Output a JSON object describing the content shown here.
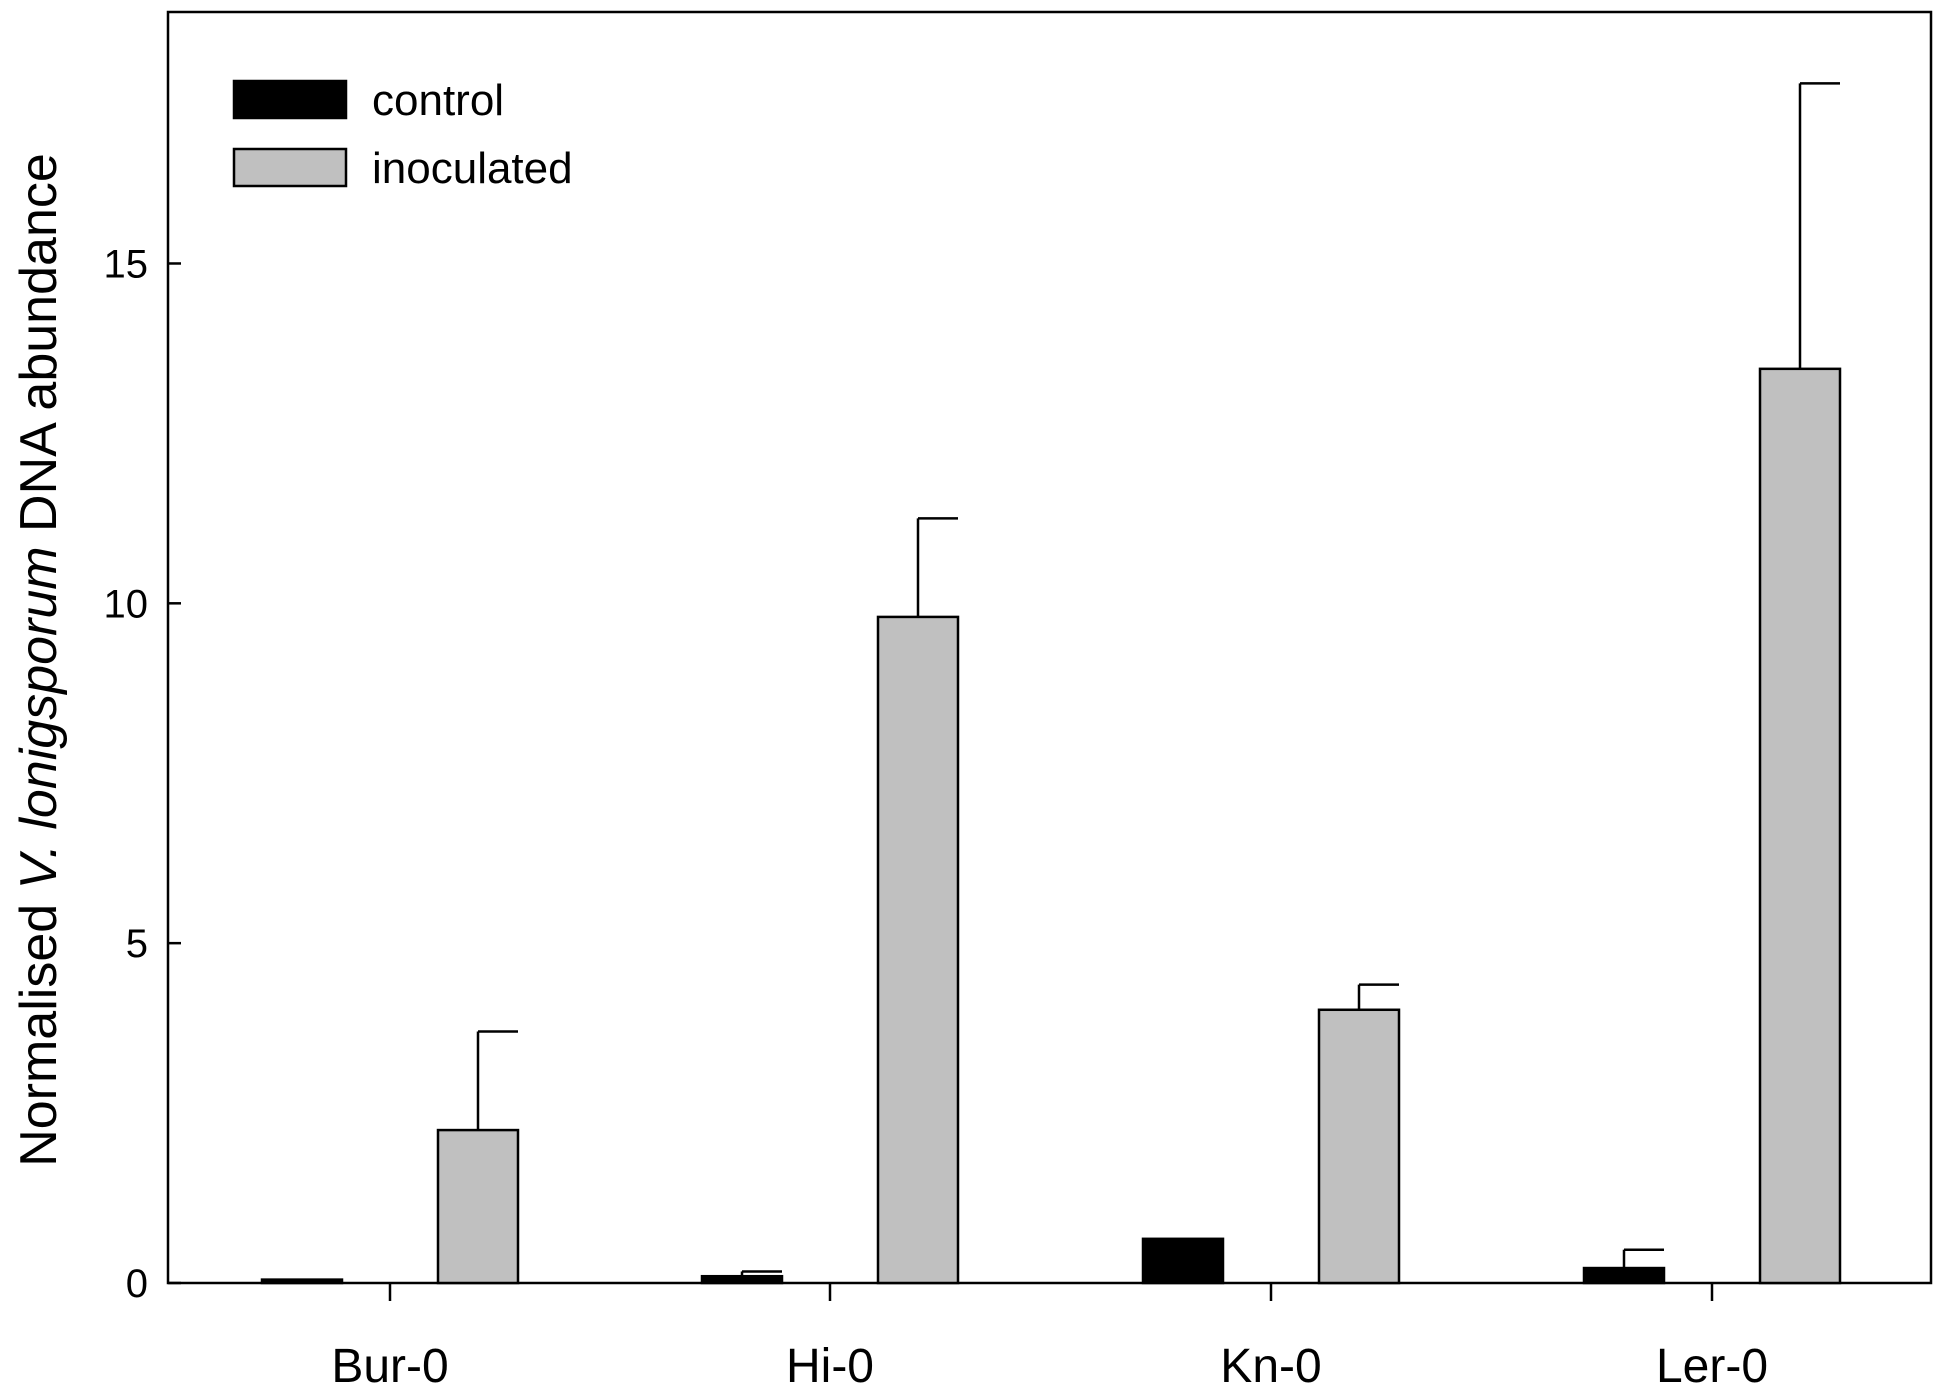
{
  "chart_data": {
    "type": "bar",
    "categories": [
      "Bur-0",
      "Hi-0",
      "Kn-0",
      "Ler-0"
    ],
    "series": [
      {
        "name": "control",
        "color": "#000000",
        "values": [
          0.05,
          0.1,
          0.65,
          0.22
        ],
        "errors": [
          0.0,
          0.07,
          0.0,
          0.27
        ]
      },
      {
        "name": "inoculated",
        "color": "#c0c0c0",
        "values": [
          2.25,
          9.8,
          4.02,
          13.45
        ],
        "errors": [
          1.45,
          1.45,
          0.37,
          4.2
        ]
      }
    ],
    "ylabel": {
      "prefix": "Normalised ",
      "italic": "V. lonigsporum",
      "suffix": " DNA abundance"
    },
    "yticks": [
      "0",
      "5",
      "10",
      "15"
    ],
    "ylim": [
      0,
      18.7
    ],
    "legend_position": "top-left",
    "grid": false
  }
}
